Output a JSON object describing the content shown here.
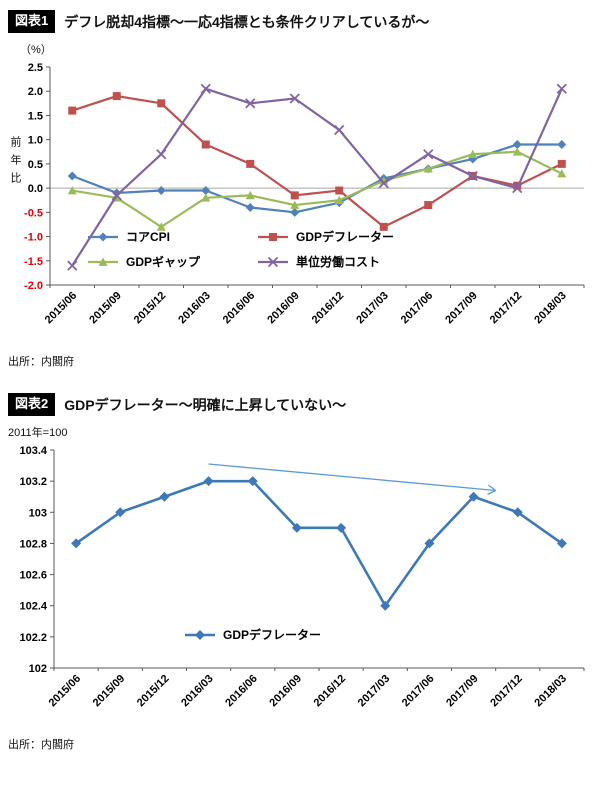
{
  "figure1": {
    "badge": "図表1",
    "title": "デフレ脱却4指標～一応4指標とも条件クリアしているが～",
    "unit": "（%）",
    "y_axis_title": "前年比",
    "source": "出所：内閣府"
  },
  "figure2": {
    "badge": "図表2",
    "title": "GDPデフレーター～明確に上昇していない～",
    "unit": "2011年=100",
    "source": "出所：内閣府"
  },
  "colors": {
    "badge_bg": "#000000",
    "negative_tick": "#e60000",
    "zero_line": "#a6a6a6",
    "axis": "#595959"
  },
  "chart_data": [
    {
      "type": "line",
      "title": "デフレ脱却4指標～一応4指標とも条件クリアしているが～",
      "xlabel": "",
      "ylabel": "前年比（%）",
      "ylim": [
        -2.0,
        2.5
      ],
      "ytick_step": 0.5,
      "tick_decimals": 1,
      "tick_trim_zeros": false,
      "zero_line": true,
      "grid": false,
      "legend_position": "inside-bottom",
      "categories": [
        "2015/06",
        "2015/09",
        "2015/12",
        "2016/03",
        "2016/06",
        "2016/09",
        "2016/12",
        "2017/03",
        "2017/06",
        "2017/09",
        "2017/12",
        "2018/03"
      ],
      "series": [
        {
          "name": "コアCPI",
          "color": "#4F81BD",
          "marker": "diamond",
          "values": [
            0.25,
            -0.1,
            -0.05,
            -0.05,
            -0.4,
            -0.5,
            -0.3,
            0.2,
            0.4,
            0.6,
            0.9,
            0.9
          ]
        },
        {
          "name": "GDPデフレーター",
          "color": "#C0504D",
          "marker": "square",
          "values": [
            1.6,
            1.9,
            1.75,
            0.9,
            0.5,
            -0.15,
            -0.05,
            -0.8,
            -0.35,
            0.25,
            0.05,
            0.5
          ]
        },
        {
          "name": "GDPギャップ",
          "color": "#9BBB59",
          "marker": "triangle",
          "values": [
            -0.05,
            -0.2,
            -0.8,
            -0.2,
            -0.15,
            -0.35,
            -0.25,
            0.15,
            0.4,
            0.7,
            0.75,
            0.3
          ]
        },
        {
          "name": "単位労働コスト",
          "color": "#8064A2",
          "marker": "x",
          "values": [
            -1.6,
            -0.15,
            0.7,
            2.05,
            1.75,
            1.85,
            1.2,
            0.1,
            0.7,
            0.25,
            0.0,
            2.05
          ]
        }
      ]
    },
    {
      "type": "line",
      "title": "GDPデフレーター～明確に上昇していない～",
      "xlabel": "",
      "ylabel": "2011年=100",
      "ylim": [
        102,
        103.4
      ],
      "ytick_step": 0.2,
      "tick_decimals": 1,
      "tick_trim_zeros": true,
      "zero_line": false,
      "grid": false,
      "legend_position": "inside-bottom",
      "trend_arrow": {
        "from": [
          3.0,
          103.31
        ],
        "to": [
          9.5,
          103.14
        ],
        "color": "#5B9BD5"
      },
      "categories": [
        "2015/06",
        "2015/09",
        "2015/12",
        "2016/03",
        "2016/06",
        "2016/09",
        "2016/12",
        "2017/03",
        "2017/06",
        "2017/09",
        "2017/12",
        "2018/03"
      ],
      "series": [
        {
          "name": "GDPデフレーター",
          "color": "#3D79B8",
          "marker": "diamond",
          "values": [
            102.8,
            103.0,
            103.1,
            103.2,
            103.2,
            102.9,
            102.9,
            102.4,
            102.8,
            103.1,
            103.0,
            102.8
          ]
        }
      ]
    }
  ]
}
